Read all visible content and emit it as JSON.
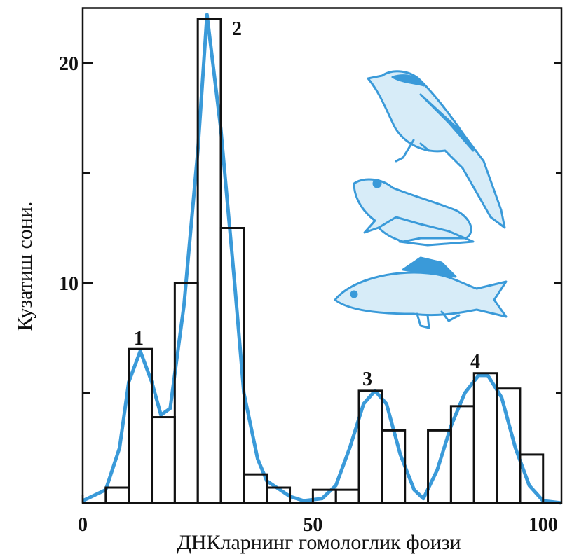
{
  "chart_data": {
    "type": "histogram",
    "xlabel": "ДНКларнинг гомологлик фоизи",
    "ylabel": "Кузатиш сони.",
    "bins": [
      5,
      10,
      15,
      20,
      25,
      30,
      35,
      40,
      45,
      50,
      55,
      60,
      65,
      70,
      75,
      80,
      85,
      90,
      95,
      100
    ],
    "counts": [
      0.7,
      7,
      3.9,
      10,
      22,
      12.5,
      1.3,
      0.7,
      0,
      0.6,
      0.6,
      5.1,
      3.3,
      0,
      3.3,
      4.4,
      5.9,
      5.2,
      2.2
    ],
    "color": "#111111",
    "curve": {
      "color": "#3a9ad9",
      "x": [
        0,
        5,
        8,
        10,
        12.5,
        15,
        17,
        19,
        22,
        25,
        27,
        30,
        33,
        35,
        38,
        40,
        45,
        48,
        52,
        55,
        58,
        61,
        63.5,
        66,
        69,
        72,
        74,
        77,
        80,
        83,
        86,
        88,
        91,
        94,
        97,
        100,
        104
      ],
      "values": [
        0.1,
        0.6,
        2.5,
        5.5,
        6.9,
        5.5,
        4.0,
        4.3,
        9,
        16,
        22.2,
        17,
        10,
        5,
        2,
        1,
        0.3,
        0.1,
        0.2,
        0.8,
        2.5,
        4.5,
        5.1,
        4.5,
        2.2,
        0.6,
        0.2,
        1.5,
        3.5,
        5,
        5.8,
        5.8,
        4.8,
        2.5,
        0.8,
        0.1,
        0
      ]
    },
    "annotations": [
      "1",
      "2",
      "3",
      "4"
    ],
    "xlim": [
      0,
      104
    ],
    "ylim": [
      0,
      22.5
    ],
    "xticks": [
      0,
      50,
      100
    ],
    "yticks": [
      10,
      20
    ],
    "minor_xticks": [
      10,
      20,
      30,
      40,
      60,
      70,
      80,
      90
    ],
    "minor_yticks": [
      5,
      15
    ]
  }
}
